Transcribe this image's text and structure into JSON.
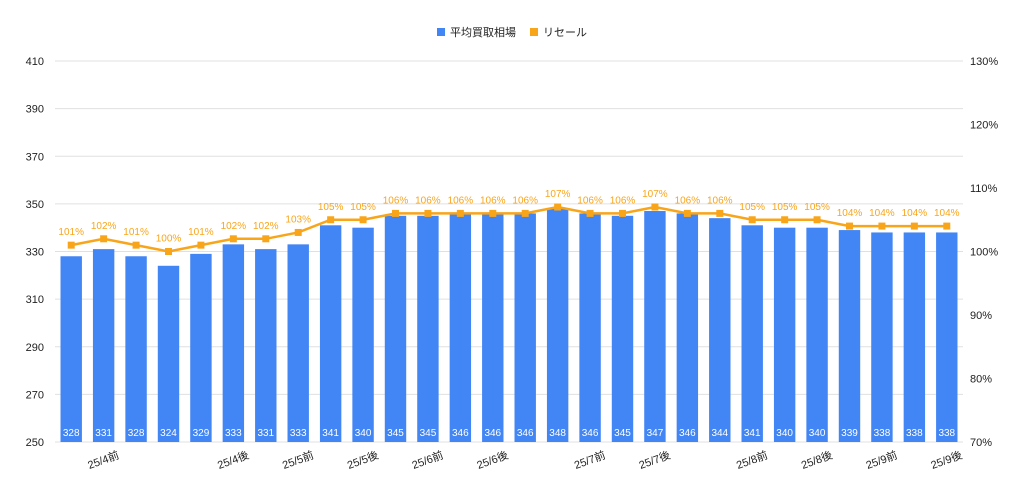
{
  "colors": {
    "bar": "#4285f4",
    "line": "#f9a51a",
    "grid": "#e0e0e0",
    "axis_text": "#222222"
  },
  "chart_data": {
    "type": "bar",
    "legend_position": "top",
    "grid": true,
    "categories": [
      "",
      "25/4前",
      "",
      "",
      "",
      "25/4後",
      "",
      "25/5前",
      "",
      "25/5後",
      "",
      "25/6前",
      "",
      "25/6後",
      "",
      "",
      "25/7前",
      "",
      "25/7後",
      "",
      "",
      "25/8前",
      "",
      "25/8後",
      "",
      "25/9前",
      "",
      "25/9後"
    ],
    "series": [
      {
        "name": "平均買取相場",
        "type": "bar",
        "axis": "left",
        "values": [
          328,
          331,
          328,
          324,
          329,
          333,
          331,
          333,
          341,
          340,
          345,
          345,
          346,
          346,
          346,
          348,
          346,
          345,
          347,
          346,
          344,
          341,
          340,
          340,
          339,
          338,
          338,
          338
        ],
        "data_labels": [
          "328",
          "331",
          "328",
          "324",
          "329",
          "333",
          "331",
          "333",
          "341",
          "340",
          "345",
          "345",
          "346",
          "346",
          "346",
          "348",
          "346",
          "345",
          "347",
          "346",
          "344",
          "341",
          "340",
          "340",
          "339",
          "338",
          "338",
          "338"
        ]
      },
      {
        "name": "リセール",
        "type": "line",
        "axis": "right",
        "values": [
          101,
          102,
          101,
          100,
          101,
          102,
          102,
          103,
          105,
          105,
          106,
          106,
          106,
          106,
          106,
          107,
          106,
          106,
          107,
          106,
          106,
          105,
          105,
          105,
          104,
          104,
          104,
          104
        ],
        "data_labels": [
          "101%",
          "102%",
          "101%",
          "100%",
          "101%",
          "102%",
          "102%",
          "103%",
          "105%",
          "105%",
          "106%",
          "106%",
          "106%",
          "106%",
          "106%",
          "107%",
          "106%",
          "106%",
          "107%",
          "106%",
          "106%",
          "105%",
          "105%",
          "105%",
          "104%",
          "104%",
          "104%",
          "104%"
        ]
      }
    ],
    "y_left": {
      "min": 250,
      "max": 410,
      "ticks": [
        "410",
        "390",
        "370",
        "350",
        "330",
        "310",
        "290",
        "270",
        "250"
      ]
    },
    "y_right": {
      "min": 70,
      "max": 130,
      "ticks": [
        "130%",
        "120%",
        "110%",
        "100%",
        "90%",
        "80%",
        "70%"
      ]
    }
  }
}
